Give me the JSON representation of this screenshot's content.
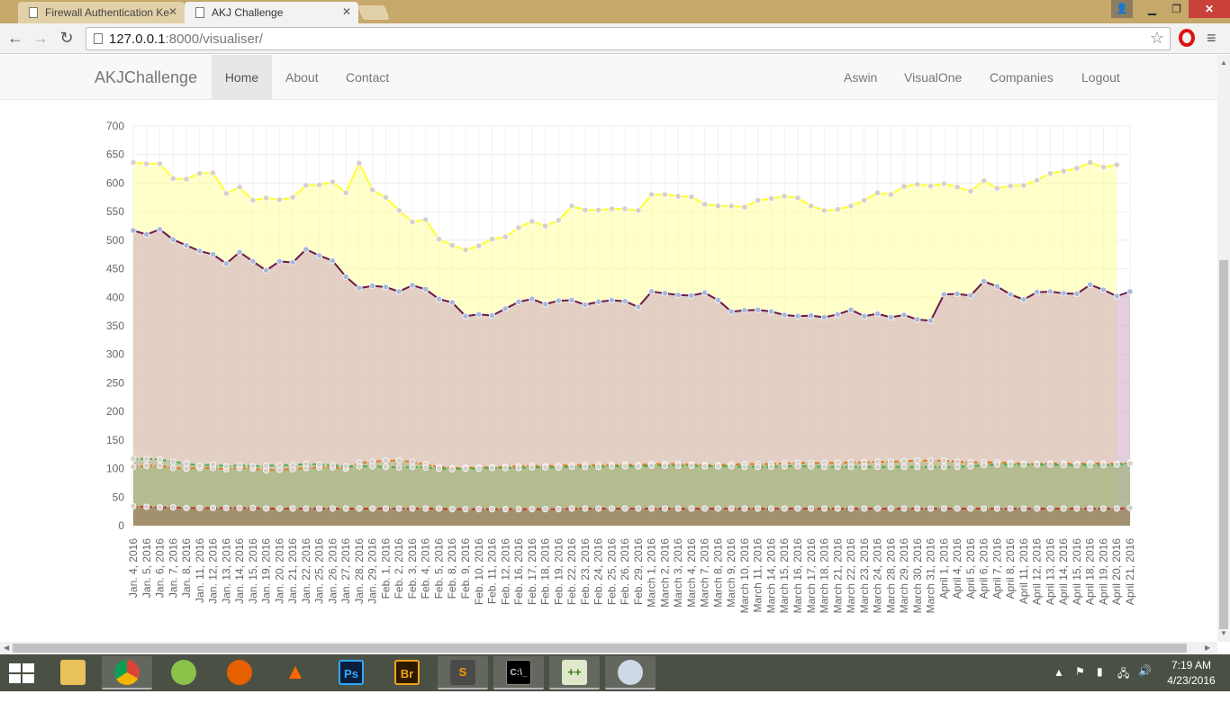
{
  "browser": {
    "tabs": [
      {
        "title": "Firewall Authentication Ke",
        "active": false
      },
      {
        "title": "AKJ Challenge",
        "active": true
      }
    ],
    "url_host": "127.0.0.1",
    "url_rest": ":8000/visualiser/"
  },
  "navbar": {
    "brand": "AKJChallenge",
    "left_items": [
      "Home",
      "About",
      "Contact"
    ],
    "right_items": [
      "Aswin",
      "VisualOne",
      "Companies",
      "Logout"
    ],
    "active": "Home"
  },
  "chart_data": {
    "type": "area",
    "title": "",
    "xlabel": "",
    "ylabel": "",
    "ylim": [
      0,
      700
    ],
    "yticks": [
      0,
      50,
      100,
      150,
      200,
      250,
      300,
      350,
      400,
      450,
      500,
      550,
      600,
      650,
      700
    ],
    "grid": true,
    "x": [
      "Jan. 4, 2016",
      "Jan. 5, 2016",
      "Jan. 6, 2016",
      "Jan. 7, 2016",
      "Jan. 8, 2016",
      "Jan. 11, 2016",
      "Jan. 12, 2016",
      "Jan. 13, 2016",
      "Jan. 14, 2016",
      "Jan. 15, 2016",
      "Jan. 19, 2016",
      "Jan. 20, 2016",
      "Jan. 21, 2016",
      "Jan. 22, 2016",
      "Jan. 25, 2016",
      "Jan. 26, 2016",
      "Jan. 27, 2016",
      "Jan. 28, 2016",
      "Jan. 29, 2016",
      "Feb. 1, 2016",
      "Feb. 2, 2016",
      "Feb. 3, 2016",
      "Feb. 4, 2016",
      "Feb. 5, 2016",
      "Feb. 8, 2016",
      "Feb. 9, 2016",
      "Feb. 10, 2016",
      "Feb. 11, 2016",
      "Feb. 12, 2016",
      "Feb. 16, 2016",
      "Feb. 17, 2016",
      "Feb. 18, 2016",
      "Feb. 19, 2016",
      "Feb. 22, 2016",
      "Feb. 23, 2016",
      "Feb. 24, 2016",
      "Feb. 25, 2016",
      "Feb. 26, 2016",
      "Feb. 29, 2016",
      "March 1, 2016",
      "March 2, 2016",
      "March 3, 2016",
      "March 4, 2016",
      "March 7, 2016",
      "March 8, 2016",
      "March 9, 2016",
      "March 10, 2016",
      "March 11, 2016",
      "March 14, 2016",
      "March 15, 2016",
      "March 16, 2016",
      "March 17, 2016",
      "March 18, 2016",
      "March 21, 2016",
      "March 22, 2016",
      "March 23, 2016",
      "March 24, 2016",
      "March 28, 2016",
      "March 29, 2016",
      "March 30, 2016",
      "March 31, 2016",
      "April 1, 2016",
      "April 4, 2016",
      "April 5, 2016",
      "April 6, 2016",
      "April 7, 2016",
      "April 8, 2016",
      "April 11, 2016",
      "April 12, 2016",
      "April 13, 2016",
      "April 14, 2016",
      "April 15, 2016",
      "April 18, 2016",
      "April 19, 2016",
      "April 20, 2016",
      "April 21, 2016"
    ],
    "series": [
      {
        "color": "#ffff33",
        "fill": "rgba(255,255,150,0.5)",
        "values": [
          636,
          634,
          634,
          608,
          607,
          617,
          618,
          582,
          593,
          570,
          574,
          571,
          575,
          596,
          597,
          602,
          583,
          635,
          588,
          575,
          552,
          532,
          536,
          502,
          491,
          483,
          490,
          502,
          506,
          522,
          533,
          525,
          535,
          560,
          553,
          553,
          555,
          555,
          552,
          580,
          580,
          577,
          576,
          563,
          560,
          560,
          558,
          570,
          573,
          577,
          574,
          560,
          552,
          554,
          560,
          570,
          583,
          580,
          594,
          598,
          595,
          599,
          593,
          586,
          604,
          591,
          595,
          596,
          605,
          617,
          621,
          626,
          636,
          628,
          632,
          null
        ]
      },
      {
        "color": "#6b1a4e",
        "fill": "rgba(200,160,190,0.5)",
        "values": [
          517,
          510,
          519,
          501,
          491,
          481,
          475,
          459,
          479,
          463,
          447,
          463,
          461,
          484,
          473,
          464,
          436,
          416,
          420,
          418,
          410,
          421,
          414,
          397,
          391,
          367,
          370,
          368,
          380,
          392,
          397,
          388,
          394,
          395,
          387,
          392,
          395,
          393,
          383,
          410,
          407,
          404,
          403,
          408,
          395,
          375,
          377,
          378,
          375,
          369,
          367,
          368,
          365,
          370,
          378,
          367,
          371,
          365,
          369,
          361,
          359,
          405,
          406,
          403,
          428,
          419,
          405,
          396,
          409,
          410,
          407,
          406,
          422,
          413,
          402,
          410
        ]
      },
      {
        "color": "#e07b22",
        "fill": "rgba(150,170,100,0.35)",
        "values": [
          103,
          105,
          105,
          101,
          100,
          101,
          101,
          99,
          101,
          100,
          97,
          98,
          99,
          101,
          102,
          102,
          100,
          110,
          112,
          114,
          114,
          112,
          107,
          103,
          101,
          101,
          102,
          102,
          103,
          104,
          105,
          104,
          105,
          106,
          106,
          106,
          106,
          107,
          106,
          108,
          108,
          108,
          107,
          106,
          106,
          107,
          108,
          108,
          108,
          109,
          110,
          110,
          110,
          110,
          111,
          111,
          112,
          112,
          113,
          114,
          114,
          114,
          112,
          111,
          111,
          111,
          110,
          108,
          108,
          109,
          109,
          108,
          109,
          109,
          108,
          110
        ]
      },
      {
        "color": "#4caf50",
        "fill": "rgba(120,170,90,0.25)",
        "values": [
          117,
          117,
          116,
          112,
          109,
          105,
          107,
          104,
          106,
          104,
          105,
          106,
          106,
          108,
          107,
          106,
          104,
          104,
          104,
          103,
          102,
          103,
          102,
          100,
          99,
          100,
          100,
          101,
          101,
          101,
          102,
          102,
          102,
          103,
          103,
          103,
          104,
          104,
          104,
          105,
          105,
          105,
          105,
          104,
          104,
          104,
          103,
          103,
          103,
          104,
          104,
          104,
          103,
          103,
          103,
          103,
          103,
          103,
          103,
          103,
          103,
          103,
          103,
          104,
          106,
          107,
          107,
          107,
          107,
          107,
          106,
          106,
          106,
          106,
          107,
          109
        ]
      },
      {
        "color": "#c0392b",
        "fill": "rgba(150,110,80,0.55)",
        "values": [
          34,
          33,
          32,
          32,
          31,
          31,
          31,
          31,
          31,
          31,
          30,
          30,
          30,
          30,
          30,
          30,
          30,
          30,
          30,
          30,
          30,
          30,
          30,
          30,
          29,
          29,
          29,
          29,
          29,
          29,
          29,
          29,
          29,
          30,
          30,
          30,
          30,
          30,
          30,
          30,
          30,
          30,
          30,
          30,
          30,
          30,
          30,
          30,
          30,
          30,
          30,
          30,
          30,
          30,
          30,
          30,
          30,
          30,
          30,
          30,
          30,
          30,
          30,
          30,
          30,
          30,
          30,
          30,
          30,
          30,
          30,
          30,
          30,
          30,
          30,
          31
        ]
      }
    ]
  },
  "taskbar": {
    "apps": [
      "File Explorer",
      "Google Chrome",
      "Android Studio",
      "Firefox",
      "VLC",
      "Ps",
      "Br",
      "Sublime Text",
      "Command Prompt",
      "Notepad++",
      "Paint"
    ],
    "time": "7:19 AM",
    "date": "4/23/2016"
  }
}
